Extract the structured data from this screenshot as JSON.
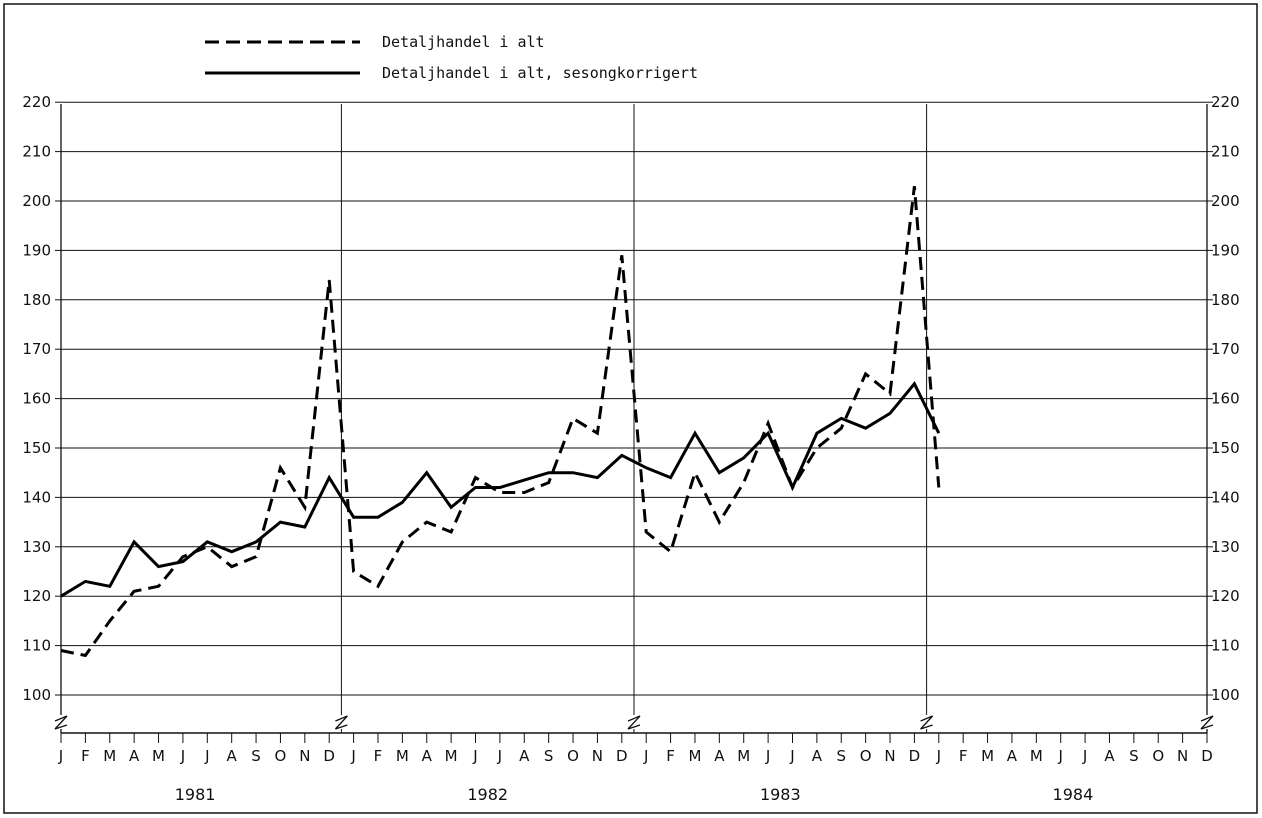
{
  "chart_data": {
    "type": "line",
    "ylim": [
      100,
      220
    ],
    "y_ticks": [
      "100",
      "110",
      "120",
      "130",
      "140",
      "150",
      "160",
      "170",
      "180",
      "190",
      "200",
      "210",
      "220"
    ],
    "x_month_labels": [
      "J",
      "F",
      "M",
      "A",
      "M",
      "J",
      "J",
      "A",
      "S",
      "O",
      "N",
      "D"
    ],
    "years": [
      "1981",
      "1982",
      "1983",
      "1984"
    ],
    "grid": "horizontal lines every 10, vertical lines at year boundaries",
    "legend_placement": "top-left, above plot",
    "series": [
      {
        "name": "Detaljhandel i alt",
        "style": "dashed",
        "color": "#000000",
        "values": [
          109,
          108,
          115,
          121,
          122,
          128,
          130,
          126,
          128,
          146,
          138,
          184,
          125,
          122,
          131,
          135,
          133,
          144,
          141,
          141,
          143,
          156,
          153,
          189,
          133,
          129,
          145,
          135,
          143,
          155,
          142,
          150,
          154,
          165,
          161,
          203,
          142
        ]
      },
      {
        "name": "Detaljhandel i alt, sesongkorrigert",
        "style": "solid",
        "color": "#000000",
        "values": [
          120,
          123,
          122,
          131,
          126,
          127,
          131,
          129,
          131,
          135,
          134,
          144,
          136,
          136,
          139,
          145,
          138,
          142,
          142,
          143.5,
          145,
          145,
          144,
          148.5,
          146,
          144,
          153,
          145,
          148,
          153,
          142,
          153,
          156,
          154,
          157,
          163,
          153
        ]
      }
    ]
  }
}
